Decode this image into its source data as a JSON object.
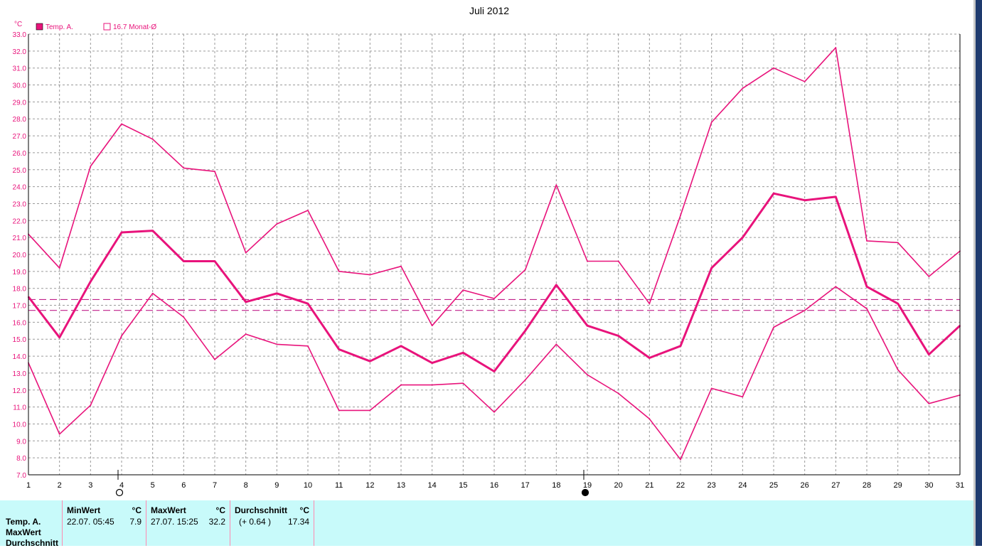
{
  "chart_data": {
    "type": "line",
    "title": "Juli 2012",
    "ylabel": "°C",
    "ylim": [
      7.0,
      33.0
    ],
    "xlim": [
      1,
      31
    ],
    "grid": true,
    "legend_position": "top-left",
    "legend": [
      {
        "label": "Temp. A.",
        "marker": "filled-square",
        "color": "#e8137b"
      },
      {
        "label": "16.7 Monat-Ø",
        "marker": "hollow-square",
        "color": "#e8137b"
      }
    ],
    "x": [
      1,
      2,
      3,
      4,
      5,
      6,
      7,
      8,
      9,
      10,
      11,
      12,
      13,
      14,
      15,
      16,
      17,
      18,
      19,
      20,
      21,
      22,
      23,
      24,
      25,
      26,
      27,
      28,
      29,
      30,
      31
    ],
    "x_ticks": [
      "1",
      "2",
      "3",
      "4",
      "5",
      "6",
      "7",
      "8",
      "9",
      "10",
      "11",
      "12",
      "13",
      "14",
      "15",
      "16",
      "17",
      "18",
      "19",
      "20",
      "21",
      "22",
      "23",
      "24",
      "25",
      "26",
      "27",
      "28",
      "29",
      "30",
      "31"
    ],
    "y_ticks": [
      "7.0",
      "8.0",
      "9.0",
      "10.0",
      "11.0",
      "12.0",
      "13.0",
      "14.0",
      "15.0",
      "16.0",
      "17.0",
      "18.0",
      "19.0",
      "20.0",
      "21.0",
      "22.0",
      "23.0",
      "24.0",
      "25.0",
      "26.0",
      "27.0",
      "28.0",
      "29.0",
      "30.0",
      "31.0",
      "32.0",
      "33.0"
    ],
    "series": [
      {
        "role": "max",
        "color": "#e8137b",
        "values": [
          21.2,
          19.2,
          25.2,
          27.7,
          26.8,
          25.1,
          24.9,
          20.1,
          21.8,
          22.6,
          19.0,
          18.8,
          19.3,
          15.8,
          17.9,
          17.4,
          19.1,
          24.1,
          19.6,
          19.6,
          17.1,
          22.3,
          27.8,
          29.8,
          31.0,
          30.2,
          32.2,
          20.8,
          20.7,
          18.7,
          20.2
        ]
      },
      {
        "name": "Temp. A.",
        "role": "mean",
        "color": "#e8137b",
        "values": [
          17.5,
          15.1,
          18.4,
          21.3,
          21.4,
          19.6,
          19.6,
          17.2,
          17.7,
          17.1,
          14.4,
          13.7,
          14.6,
          13.6,
          14.2,
          13.1,
          15.5,
          18.2,
          15.8,
          15.2,
          13.9,
          14.6,
          19.2,
          21.0,
          23.6,
          23.2,
          23.4,
          18.1,
          17.1,
          14.1,
          15.8
        ]
      },
      {
        "role": "min",
        "color": "#e8137b",
        "values": [
          13.6,
          9.4,
          11.1,
          15.2,
          17.7,
          16.3,
          13.8,
          15.3,
          14.7,
          14.6,
          10.8,
          10.8,
          12.3,
          12.3,
          12.4,
          10.7,
          12.6,
          14.7,
          12.9,
          11.8,
          10.3,
          7.9,
          12.1,
          11.6,
          15.7,
          16.7,
          18.1,
          16.8,
          13.2,
          11.2,
          11.7
        ]
      }
    ],
    "reference_lines": [
      {
        "label": "16.7 Monat-Ø",
        "value": 16.7,
        "style": "dashed",
        "color": "#c0208a"
      },
      {
        "label": "Durchschnitt",
        "value": 17.34,
        "style": "dashed",
        "color": "#c0208a"
      }
    ],
    "moon_markers": [
      {
        "day": 4,
        "phase": "full-moon"
      },
      {
        "day": 19,
        "phase": "new-moon"
      }
    ]
  },
  "stats": {
    "row_labels": [
      "Temp. A.",
      "MaxWert",
      "Durchschnitt"
    ],
    "min": {
      "header": "MinWert",
      "unit": "°C",
      "datetime": "22.07.  05:45",
      "value": "7.9"
    },
    "max": {
      "header": "MaxWert",
      "unit": "°C",
      "datetime": "27.07.  15:25",
      "value": "32.2"
    },
    "avg": {
      "header": "Durchschnitt",
      "unit": "°C",
      "delta": "(+ 0.64 )",
      "value": "17.34"
    }
  }
}
